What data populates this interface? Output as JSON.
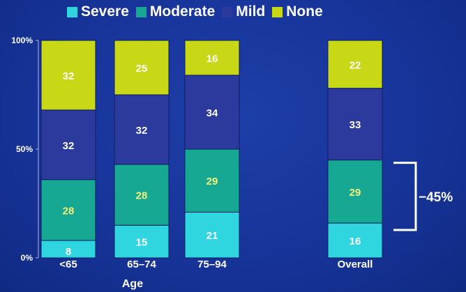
{
  "chart_data": {
    "type": "bar",
    "stacked": true,
    "categories": [
      "<65",
      "65–74",
      "75–94",
      "Overall"
    ],
    "series": [
      {
        "name": "Severe",
        "color": "#2fd6e0",
        "values": [
          8,
          15,
          21,
          16
        ]
      },
      {
        "name": "Moderate",
        "color": "#16a892",
        "values": [
          28,
          28,
          29,
          29
        ]
      },
      {
        "name": "Mild",
        "color": "#2c3a9e",
        "values": [
          32,
          32,
          34,
          33
        ]
      },
      {
        "name": "None",
        "color": "#c8d817",
        "values": [
          32,
          25,
          16,
          22
        ]
      }
    ],
    "xlabel": "Age",
    "ylabel": "",
    "ylim": [
      0,
      100
    ],
    "y_ticks": [
      "0%",
      "50%",
      "100%"
    ],
    "y_tick_values": [
      0,
      50,
      100
    ],
    "legend_position": "top",
    "grid": false,
    "annotation": {
      "text": "−45%",
      "target_category": "Overall",
      "bracket_series": [
        "Severe",
        "Moderate"
      ]
    }
  }
}
